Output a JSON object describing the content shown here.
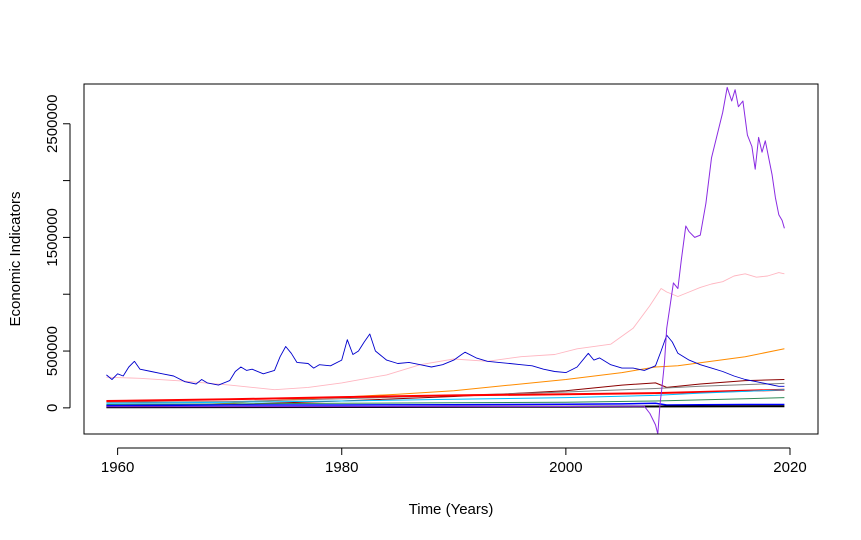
{
  "chart_data": {
    "type": "line",
    "title": "",
    "xlabel": "Time (Years)",
    "ylabel": "Economic Indicators",
    "xlim": [
      1957,
      2022.5
    ],
    "ylim": [
      -230000,
      2850000
    ],
    "grid": false,
    "legend": "none",
    "x_ticks": [
      1960,
      1980,
      2000,
      2020
    ],
    "y_ticks": [
      0,
      500000,
      1500000,
      2500000
    ],
    "y_tick_labels": [
      "0",
      "500000",
      "1500000",
      "2500000"
    ],
    "series": [
      {
        "color": "#ffb6c1",
        "width": 0.9,
        "points": [
          [
            1959,
            270000
          ],
          [
            1962,
            260000
          ],
          [
            1966,
            235000
          ],
          [
            1970,
            200000
          ],
          [
            1974,
            160000
          ],
          [
            1977,
            180000
          ],
          [
            1980,
            220000
          ],
          [
            1984,
            290000
          ],
          [
            1987,
            380000
          ],
          [
            1990,
            430000
          ],
          [
            1993,
            410000
          ],
          [
            1996,
            450000
          ],
          [
            1999,
            470000
          ],
          [
            2001,
            520000
          ],
          [
            2004,
            560000
          ],
          [
            2006,
            700000
          ],
          [
            2007.5,
            900000
          ],
          [
            2008.5,
            1050000
          ],
          [
            2009,
            1020000
          ],
          [
            2010,
            980000
          ],
          [
            2011,
            1020000
          ],
          [
            2012,
            1060000
          ],
          [
            2013,
            1090000
          ],
          [
            2014,
            1110000
          ],
          [
            2015,
            1160000
          ],
          [
            2016,
            1180000
          ],
          [
            2017,
            1150000
          ],
          [
            2018,
            1160000
          ],
          [
            2019,
            1190000
          ],
          [
            2019.5,
            1180000
          ]
        ]
      },
      {
        "color": "#ff8c00",
        "width": 1.0,
        "points": [
          [
            1959,
            5000
          ],
          [
            1965,
            20000
          ],
          [
            1970,
            40000
          ],
          [
            1975,
            70000
          ],
          [
            1980,
            95000
          ],
          [
            1985,
            120000
          ],
          [
            1990,
            150000
          ],
          [
            1995,
            200000
          ],
          [
            2000,
            250000
          ],
          [
            2005,
            310000
          ],
          [
            2008,
            360000
          ],
          [
            2010,
            370000
          ],
          [
            2013,
            410000
          ],
          [
            2016,
            450000
          ],
          [
            2019.5,
            520000
          ]
        ]
      },
      {
        "color": "#8b0000",
        "width": 1.0,
        "points": [
          [
            1959,
            20000
          ],
          [
            1970,
            30000
          ],
          [
            1980,
            60000
          ],
          [
            1990,
            100000
          ],
          [
            2000,
            150000
          ],
          [
            2005,
            200000
          ],
          [
            2008,
            220000
          ],
          [
            2009,
            180000
          ],
          [
            2012,
            210000
          ],
          [
            2016,
            240000
          ],
          [
            2019.5,
            250000
          ]
        ]
      },
      {
        "color": "#808080",
        "width": 1.0,
        "points": [
          [
            1959,
            50000
          ],
          [
            1970,
            55000
          ],
          [
            1980,
            80000
          ],
          [
            1990,
            110000
          ],
          [
            2000,
            140000
          ],
          [
            2008,
            170000
          ],
          [
            2012,
            190000
          ],
          [
            2016,
            205000
          ],
          [
            2019.5,
            215000
          ]
        ]
      },
      {
        "color": "#ff0000",
        "width": 2.0,
        "points": [
          [
            1959,
            60000
          ],
          [
            1970,
            75000
          ],
          [
            1980,
            95000
          ],
          [
            1990,
            110000
          ],
          [
            2000,
            120000
          ],
          [
            2008,
            130000
          ],
          [
            2012,
            140000
          ],
          [
            2016,
            150000
          ],
          [
            2019.5,
            160000
          ]
        ]
      },
      {
        "color": "#00bfff",
        "width": 1.0,
        "points": [
          [
            1959,
            40000
          ],
          [
            1970,
            50000
          ],
          [
            1980,
            60000
          ],
          [
            1990,
            75000
          ],
          [
            2000,
            90000
          ],
          [
            2008,
            110000
          ],
          [
            2012,
            130000
          ],
          [
            2016,
            145000
          ],
          [
            2019.5,
            160000
          ]
        ]
      },
      {
        "color": "#2e8b57",
        "width": 1.0,
        "points": [
          [
            1959,
            30000
          ],
          [
            1970,
            35000
          ],
          [
            1980,
            40000
          ],
          [
            1990,
            45000
          ],
          [
            2000,
            50000
          ],
          [
            2008,
            60000
          ],
          [
            2012,
            70000
          ],
          [
            2016,
            80000
          ],
          [
            2019.5,
            90000
          ]
        ]
      },
      {
        "color": "#0000ff",
        "width": 1.5,
        "points": [
          [
            1959,
            20000
          ],
          [
            1970,
            25000
          ],
          [
            1980,
            25000
          ],
          [
            1990,
            28000
          ],
          [
            2000,
            32000
          ],
          [
            2005,
            35000
          ],
          [
            2008,
            40000
          ],
          [
            2009,
            25000
          ],
          [
            2012,
            28000
          ],
          [
            2016,
            30000
          ],
          [
            2019.5,
            30000
          ]
        ]
      },
      {
        "color": "#000000",
        "width": 2.0,
        "points": [
          [
            1959,
            5000
          ],
          [
            1980,
            8000
          ],
          [
            2000,
            10000
          ],
          [
            2019.5,
            15000
          ]
        ]
      },
      {
        "color": "#0000cd",
        "width": 0.9,
        "points": [
          [
            1959,
            290000
          ],
          [
            1959.5,
            250000
          ],
          [
            1960,
            300000
          ],
          [
            1960.5,
            280000
          ],
          [
            1961,
            360000
          ],
          [
            1961.5,
            410000
          ],
          [
            1962,
            340000
          ],
          [
            1963,
            320000
          ],
          [
            1964,
            300000
          ],
          [
            1965,
            280000
          ],
          [
            1966,
            230000
          ],
          [
            1967,
            210000
          ],
          [
            1967.5,
            250000
          ],
          [
            1968,
            220000
          ],
          [
            1969,
            200000
          ],
          [
            1970,
            240000
          ],
          [
            1970.5,
            320000
          ],
          [
            1971,
            360000
          ],
          [
            1971.5,
            330000
          ],
          [
            1972,
            340000
          ],
          [
            1973,
            300000
          ],
          [
            1974,
            330000
          ],
          [
            1974.5,
            450000
          ],
          [
            1975,
            540000
          ],
          [
            1975.5,
            480000
          ],
          [
            1976,
            400000
          ],
          [
            1977,
            390000
          ],
          [
            1977.5,
            350000
          ],
          [
            1978,
            380000
          ],
          [
            1979,
            370000
          ],
          [
            1980,
            420000
          ],
          [
            1980.5,
            600000
          ],
          [
            1981,
            470000
          ],
          [
            1981.5,
            500000
          ],
          [
            1982,
            580000
          ],
          [
            1982.5,
            650000
          ],
          [
            1983,
            500000
          ],
          [
            1984,
            420000
          ],
          [
            1985,
            390000
          ],
          [
            1986,
            400000
          ],
          [
            1987,
            380000
          ],
          [
            1988,
            360000
          ],
          [
            1989,
            380000
          ],
          [
            1990,
            420000
          ],
          [
            1990.7,
            470000
          ],
          [
            1991,
            490000
          ],
          [
            1992,
            440000
          ],
          [
            1993,
            410000
          ],
          [
            1994,
            400000
          ],
          [
            1995,
            390000
          ],
          [
            1996,
            380000
          ],
          [
            1997,
            370000
          ],
          [
            1998,
            340000
          ],
          [
            1999,
            320000
          ],
          [
            2000,
            310000
          ],
          [
            2001,
            360000
          ],
          [
            2002,
            480000
          ],
          [
            2002.5,
            420000
          ],
          [
            2003,
            440000
          ],
          [
            2004,
            380000
          ],
          [
            2005,
            350000
          ],
          [
            2006,
            350000
          ],
          [
            2007,
            330000
          ],
          [
            2008,
            370000
          ],
          [
            2008.5,
            500000
          ],
          [
            2009,
            640000
          ],
          [
            2009.5,
            580000
          ],
          [
            2010,
            480000
          ],
          [
            2011,
            420000
          ],
          [
            2012,
            380000
          ],
          [
            2013,
            350000
          ],
          [
            2014,
            320000
          ],
          [
            2015,
            280000
          ],
          [
            2016,
            250000
          ],
          [
            2017,
            230000
          ],
          [
            2018,
            210000
          ],
          [
            2019,
            190000
          ],
          [
            2019.5,
            190000
          ]
        ]
      },
      {
        "color": "#8a2be2",
        "width": 1.0,
        "points": [
          [
            1959,
            10000
          ],
          [
            2000,
            12000
          ],
          [
            2007,
            15000
          ],
          [
            2007.5,
            -50000
          ],
          [
            2008,
            -150000
          ],
          [
            2008.2,
            -230000
          ],
          [
            2008.4,
            30000
          ],
          [
            2008.6,
            200000
          ],
          [
            2008.8,
            400000
          ],
          [
            2009,
            700000
          ],
          [
            2009.3,
            900000
          ],
          [
            2009.6,
            1100000
          ],
          [
            2010,
            1050000
          ],
          [
            2010.3,
            1300000
          ],
          [
            2010.7,
            1600000
          ],
          [
            2011,
            1550000
          ],
          [
            2011.5,
            1500000
          ],
          [
            2012,
            1520000
          ],
          [
            2012.5,
            1800000
          ],
          [
            2013,
            2200000
          ],
          [
            2013.5,
            2400000
          ],
          [
            2014,
            2600000
          ],
          [
            2014.4,
            2820000
          ],
          [
            2014.8,
            2700000
          ],
          [
            2015.1,
            2800000
          ],
          [
            2015.4,
            2650000
          ],
          [
            2015.8,
            2700000
          ],
          [
            2016.2,
            2400000
          ],
          [
            2016.6,
            2300000
          ],
          [
            2016.9,
            2100000
          ],
          [
            2017.2,
            2380000
          ],
          [
            2017.5,
            2250000
          ],
          [
            2017.8,
            2350000
          ],
          [
            2018.1,
            2200000
          ],
          [
            2018.4,
            2050000
          ],
          [
            2018.7,
            1850000
          ],
          [
            2019,
            1700000
          ],
          [
            2019.3,
            1650000
          ],
          [
            2019.5,
            1580000
          ]
        ]
      }
    ]
  }
}
